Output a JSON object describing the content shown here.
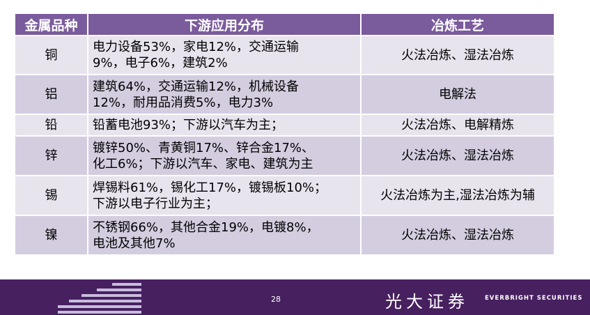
{
  "table": {
    "headers": [
      "金属品种",
      "下游应用分布",
      "冶炼工艺"
    ],
    "rows": [
      {
        "metal": "铜",
        "uses": [
          "电力设备53%，家电12%，交通运输",
          "9%，电子6%，建筑2%"
        ],
        "process": "火法冶炼、湿法冶炼"
      },
      {
        "metal": "铝",
        "uses": [
          "建筑64%，交通运输12%，机械设备",
          "12%，耐用品消费5%，电力3%"
        ],
        "process": "电解法"
      },
      {
        "metal": "铅",
        "uses": [
          "铅蓄电池93%；下游以汽车为主；"
        ],
        "process": "火法冶炼、电解精炼"
      },
      {
        "metal": "锌",
        "uses": [
          "镀锌50%、青黄铜17%、锌合金17%、",
          "化工6%；下游以汽车、家电、建筑为主"
        ],
        "process": "火法冶炼、湿法冶炼"
      },
      {
        "metal": "锡",
        "uses": [
          "焊锡料61%，锡化工17%，镀锡板10%；",
          "下游以电子行业为主；"
        ],
        "process": "火法冶炼为主,湿法冶炼为辅"
      },
      {
        "metal": "镍",
        "uses": [
          "不锈钢66%，其他合金19%，电镀8%，",
          "电池及其他7%"
        ],
        "process": "火法冶炼、湿法冶炼"
      }
    ]
  },
  "footer": {
    "page_number": "28",
    "brand_cn": "光大证券",
    "brand_en": "EVERBRIGHT SECURITIES"
  }
}
